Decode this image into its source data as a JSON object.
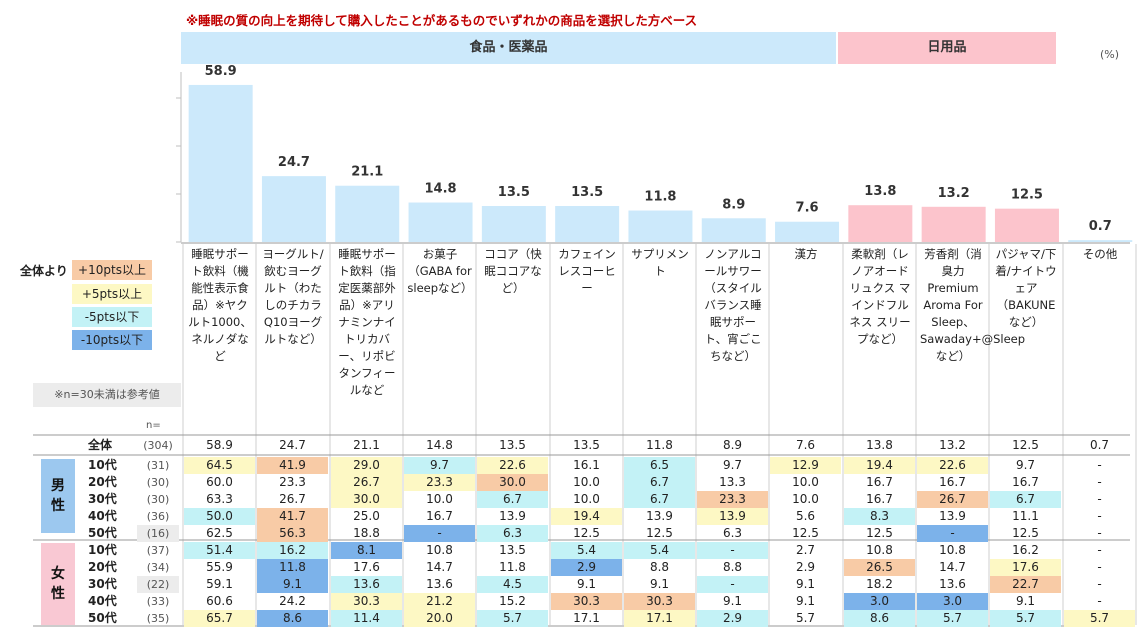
{
  "note": "※睡眠の質の向上を期待して購入したことがあるものでいずれかの商品を選択した方ベース",
  "unit": "(%)",
  "groups": {
    "food": "食品・医薬品",
    "daily": "日用品"
  },
  "legend": {
    "title": "全体より",
    "items": [
      {
        "label": "+10pts以上",
        "color": "#f8cba6"
      },
      {
        "label": "+5pts以上",
        "color": "#fdf8c4"
      },
      {
        "label": "-5pts以下",
        "color": "#c3f2f6"
      },
      {
        "label": "-10pts以下",
        "color": "#7cb2ea"
      }
    ]
  },
  "ref_note": "※n=30未満は参考値",
  "n_label": "n=",
  "gender": {
    "male": "男\n性",
    "female": "女\n性"
  },
  "chart_data": {
    "type": "bar",
    "title": "",
    "ylabel": "(%)",
    "ylim": [
      0,
      60
    ],
    "categories": [
      "睡眠サポート飲料（機能性表示食品）※ヤクルト1000、ネルノダなど",
      "ヨーグルト/飲むヨーグルト（わたしのチカラQ10ヨーグルトなど）",
      "睡眠サポート飲料（指定医薬部外品）※アリナミンナイトリカバー、リポビタンフィールなど",
      "お菓子（GABA for sleepなど）",
      "ココア（快眠ココアなど）",
      "カフェインレスコーヒー",
      "サプリメント",
      "ノンアルコールサワー（スタイルバランス睡眠サポート、宵ごこちなど）",
      "漢方",
      "柔軟剤（レノアオードリュクス マインドフルネス スリープなど）",
      "芳香剤（消臭力 Premium Aroma For Sleep、Sawaday+@Sleepなど）",
      "パジャマ/下着/ナイトウェア（BAKUNEなど）",
      "その他"
    ],
    "values": [
      58.9,
      24.7,
      21.1,
      14.8,
      13.5,
      13.5,
      11.8,
      8.9,
      7.6,
      13.8,
      13.2,
      12.5,
      0.7
    ],
    "value_labels": [
      "58.9",
      "24.7",
      "21.1",
      "14.8",
      "13.5",
      "13.5",
      "11.8",
      "8.9",
      "7.6",
      "13.8",
      "13.2",
      "12.5",
      "0.7"
    ],
    "bar_groups": [
      "food",
      "food",
      "food",
      "food",
      "food",
      "food",
      "food",
      "food",
      "food",
      "daily",
      "daily",
      "daily",
      "other"
    ],
    "colors": {
      "food": "#cce9fb",
      "daily": "#fcc4cc",
      "other": "#cce9fb"
    }
  },
  "table": {
    "rows": [
      {
        "label": "全体",
        "n": "(304)",
        "values": [
          "58.9",
          "24.7",
          "21.1",
          "14.8",
          "13.5",
          "13.5",
          "11.8",
          "8.9",
          "7.6",
          "13.8",
          "13.2",
          "12.5",
          "0.7"
        ],
        "hl": [
          0,
          0,
          0,
          0,
          0,
          0,
          0,
          0,
          0,
          0,
          0,
          0,
          0
        ]
      },
      {
        "label": "10代",
        "n": "(31)",
        "values": [
          "64.5",
          "41.9",
          "29.0",
          "9.7",
          "22.6",
          "16.1",
          "6.5",
          "9.7",
          "12.9",
          "19.4",
          "22.6",
          "9.7",
          "-"
        ],
        "hl": [
          1,
          3,
          1,
          2,
          1,
          0,
          2,
          0,
          1,
          1,
          1,
          0,
          0
        ]
      },
      {
        "label": "20代",
        "n": "(30)",
        "values": [
          "60.0",
          "23.3",
          "26.7",
          "23.3",
          "30.0",
          "10.0",
          "6.7",
          "13.3",
          "10.0",
          "16.7",
          "16.7",
          "16.7",
          "-"
        ],
        "hl": [
          0,
          0,
          1,
          1,
          3,
          0,
          2,
          0,
          0,
          0,
          0,
          0,
          0
        ]
      },
      {
        "label": "30代",
        "n": "(30)",
        "values": [
          "63.3",
          "26.7",
          "30.0",
          "10.0",
          "6.7",
          "10.0",
          "6.7",
          "23.3",
          "10.0",
          "16.7",
          "26.7",
          "6.7",
          "-"
        ],
        "hl": [
          0,
          0,
          1,
          0,
          2,
          0,
          2,
          3,
          0,
          0,
          3,
          2,
          0
        ]
      },
      {
        "label": "40代",
        "n": "(36)",
        "values": [
          "50.0",
          "41.7",
          "25.0",
          "16.7",
          "13.9",
          "19.4",
          "13.9",
          "13.9",
          "5.6",
          "8.3",
          "13.9",
          "11.1",
          "-"
        ],
        "hl": [
          2,
          3,
          0,
          0,
          0,
          1,
          0,
          1,
          0,
          2,
          0,
          0,
          0
        ]
      },
      {
        "label": "50代",
        "n": "(16)",
        "values": [
          "62.5",
          "56.3",
          "18.8",
          "-",
          "6.3",
          "12.5",
          "12.5",
          "6.3",
          "12.5",
          "12.5",
          "-",
          "12.5",
          "-"
        ],
        "hl": [
          0,
          3,
          0,
          4,
          2,
          0,
          0,
          0,
          0,
          0,
          4,
          0,
          0
        ]
      },
      {
        "label": "10代",
        "n": "(37)",
        "values": [
          "51.4",
          "16.2",
          "8.1",
          "10.8",
          "13.5",
          "5.4",
          "5.4",
          "-",
          "2.7",
          "10.8",
          "10.8",
          "16.2",
          "-"
        ],
        "hl": [
          2,
          2,
          4,
          0,
          0,
          2,
          2,
          2,
          0,
          0,
          0,
          0,
          0
        ]
      },
      {
        "label": "20代",
        "n": "(34)",
        "values": [
          "55.9",
          "11.8",
          "17.6",
          "14.7",
          "11.8",
          "2.9",
          "8.8",
          "8.8",
          "2.9",
          "26.5",
          "14.7",
          "17.6",
          "-"
        ],
        "hl": [
          0,
          4,
          0,
          0,
          0,
          4,
          0,
          0,
          0,
          3,
          0,
          1,
          0
        ]
      },
      {
        "label": "30代",
        "n": "(22)",
        "values": [
          "59.1",
          "9.1",
          "13.6",
          "13.6",
          "4.5",
          "9.1",
          "9.1",
          "-",
          "9.1",
          "18.2",
          "13.6",
          "22.7",
          "-"
        ],
        "hl": [
          0,
          4,
          2,
          0,
          2,
          0,
          0,
          2,
          0,
          0,
          0,
          3,
          0
        ]
      },
      {
        "label": "40代",
        "n": "(33)",
        "values": [
          "60.6",
          "24.2",
          "30.3",
          "21.2",
          "15.2",
          "30.3",
          "30.3",
          "9.1",
          "9.1",
          "3.0",
          "3.0",
          "9.1",
          "-"
        ],
        "hl": [
          0,
          0,
          1,
          1,
          0,
          3,
          3,
          0,
          0,
          4,
          4,
          0,
          0
        ]
      },
      {
        "label": "50代",
        "n": "(35)",
        "values": [
          "65.7",
          "8.6",
          "11.4",
          "20.0",
          "5.7",
          "17.1",
          "17.1",
          "2.9",
          "5.7",
          "8.6",
          "5.7",
          "5.7",
          "5.7"
        ],
        "hl": [
          1,
          4,
          2,
          1,
          2,
          0,
          1,
          2,
          0,
          2,
          2,
          2,
          1
        ]
      }
    ]
  }
}
